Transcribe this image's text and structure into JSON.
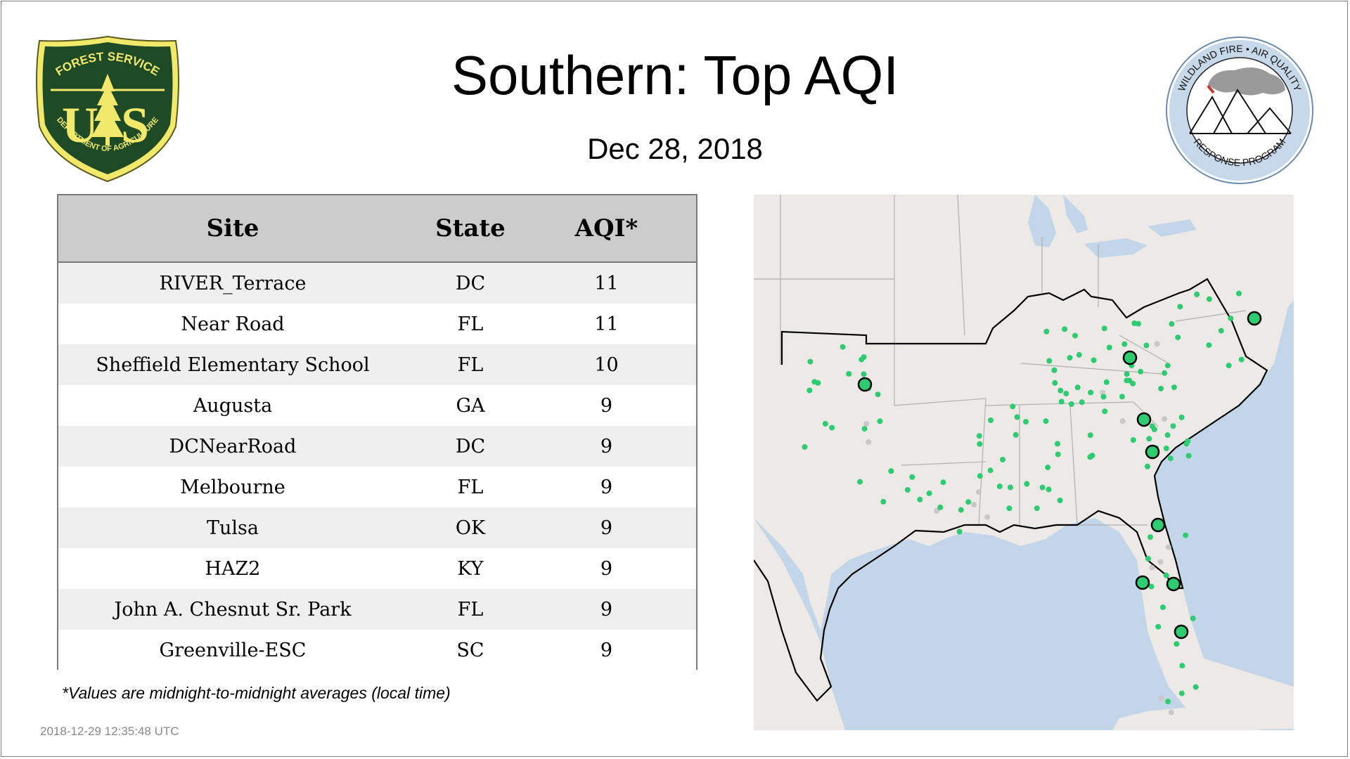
{
  "title": "Southern: Top AQI",
  "date": "Dec 28, 2018",
  "table": {
    "headers": {
      "site": "Site",
      "state": "State",
      "aqi": "AQI*"
    },
    "rows": [
      {
        "site": "RIVER_Terrace",
        "state": "DC",
        "aqi": "11"
      },
      {
        "site": "Near Road",
        "state": "FL",
        "aqi": "11"
      },
      {
        "site": "Sheffield Elementary School",
        "state": "FL",
        "aqi": "10"
      },
      {
        "site": "Augusta",
        "state": "GA",
        "aqi": "9"
      },
      {
        "site": "DCNearRoad",
        "state": "DC",
        "aqi": "9"
      },
      {
        "site": "Melbourne",
        "state": "FL",
        "aqi": "9"
      },
      {
        "site": "Tulsa",
        "state": "OK",
        "aqi": "9"
      },
      {
        "site": "HAZ2",
        "state": "KY",
        "aqi": "9"
      },
      {
        "site": "John A. Chesnut Sr. Park",
        "state": "FL",
        "aqi": "9"
      },
      {
        "site": "Greenville-ESC",
        "state": "SC",
        "aqi": "9"
      }
    ]
  },
  "footnote": "*Values are midnight-to-midnight averages (local time)",
  "timestamp": "2018-12-29 12:35:48 UTC",
  "logos": {
    "usfs": {
      "top_text": "FOREST SERVICE",
      "letters": "U S",
      "bottom_text": "DEPARTMENT OF AGRICULTURE"
    },
    "wfaqrp": {
      "top_text": "WILDLAND FIRE • AIR QUALITY",
      "bottom_text": "RESPONSE PROGRAM"
    }
  },
  "map": {
    "colors": {
      "land": "#ece9e6",
      "water": "#c3d5e8",
      "monitor": "#2ecc71",
      "top_site": "#2ecc71",
      "inactive": "#c8c8c8",
      "region_border": "#000000",
      "state_border": "#b0b0b0"
    }
  }
}
